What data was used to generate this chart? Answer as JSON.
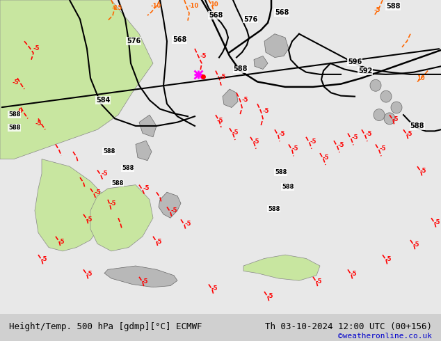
{
  "title_left": "Height/Temp. 500 hPa [gdmp][°C] ECMWF",
  "title_right": "Th 03-10-2024 12:00 UTC (00+156)",
  "credit": "©weatheronline.co.uk",
  "credit_color": "#0000cc",
  "bg_color": "#d0d0d0",
  "land_color_green": "#c8e6a0",
  "land_color_gray": "#b8b8b8",
  "sea_color": "#e8e8e8",
  "z500_color": "#000000",
  "temp_neg_color": "#ff0000",
  "temp_pos_color": "#ff6600",
  "temp_zero_color": "#ff00ff",
  "figsize": [
    6.34,
    4.9
  ],
  "dpi": 100,
  "bottom_bar_height": 0.08,
  "font_size_bottom": 9,
  "font_size_credit": 8
}
